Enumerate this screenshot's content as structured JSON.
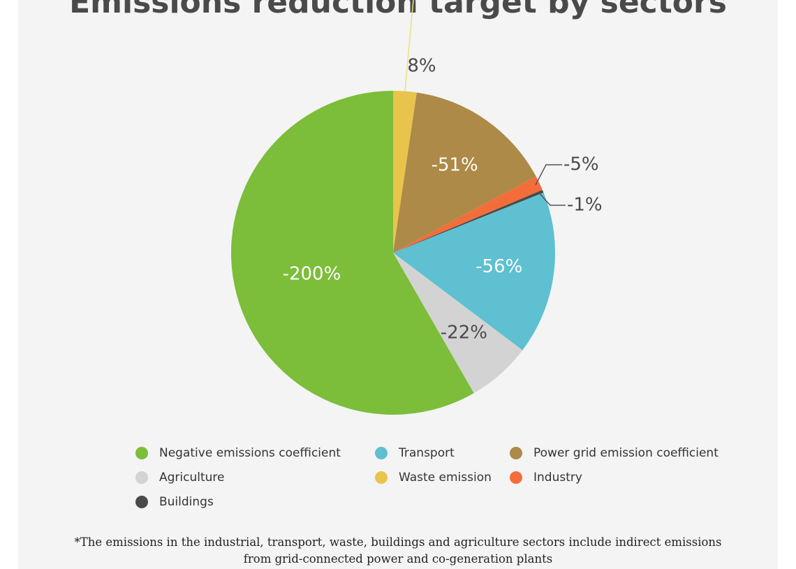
{
  "chart_data": {
    "type": "pie",
    "title": "Emissions reduction target by sectors",
    "slices": [
      {
        "name": "Waste emission",
        "label": "8%",
        "value": 8,
        "color": "#e9c44c",
        "label_pos": "outside-top"
      },
      {
        "name": "Power grid emission coefficient",
        "label": "-51%",
        "value": 51,
        "color": "#ad8a47",
        "label_pos": "inside"
      },
      {
        "name": "Industry",
        "label": "-5%",
        "value": 5,
        "color": "#f36d3b",
        "label_pos": "outside-right"
      },
      {
        "name": "Buildings",
        "label": "-1%",
        "value": 1,
        "color": "#4a4a4a",
        "label_pos": "outside-right"
      },
      {
        "name": "Transport",
        "label": "-56%",
        "value": 56,
        "color": "#5ec0d0",
        "label_pos": "inside"
      },
      {
        "name": "Agriculture",
        "label": "-22%",
        "value": 22,
        "color": "#d3d3d3",
        "label_pos": "inside"
      },
      {
        "name": "Negative emissions coefficient",
        "label": "-200%",
        "value": 200,
        "color": "#7cbd3a",
        "label_pos": "inside"
      }
    ],
    "legend": [
      {
        "label": "Negative emissions coefficient",
        "color": "#7cbd3a"
      },
      {
        "label": "Transport",
        "color": "#5ec0d0"
      },
      {
        "label": "Power grid emission coefficient",
        "color": "#ad8a47"
      },
      {
        "label": "Agriculture",
        "color": "#d3d3d3"
      },
      {
        "label": "Waste emission",
        "color": "#e9c44c"
      },
      {
        "label": "Industry",
        "color": "#f36d3b"
      },
      {
        "label": "Buildings",
        "color": "#4a4a4a"
      }
    ],
    "legend_placement": "bottom"
  },
  "footnote": {
    "line1": "*The emissions in the industrial, transport, waste, buildings and agriculture sectors include indirect emissions",
    "line2": "from grid-connected power and co-generation plants"
  }
}
